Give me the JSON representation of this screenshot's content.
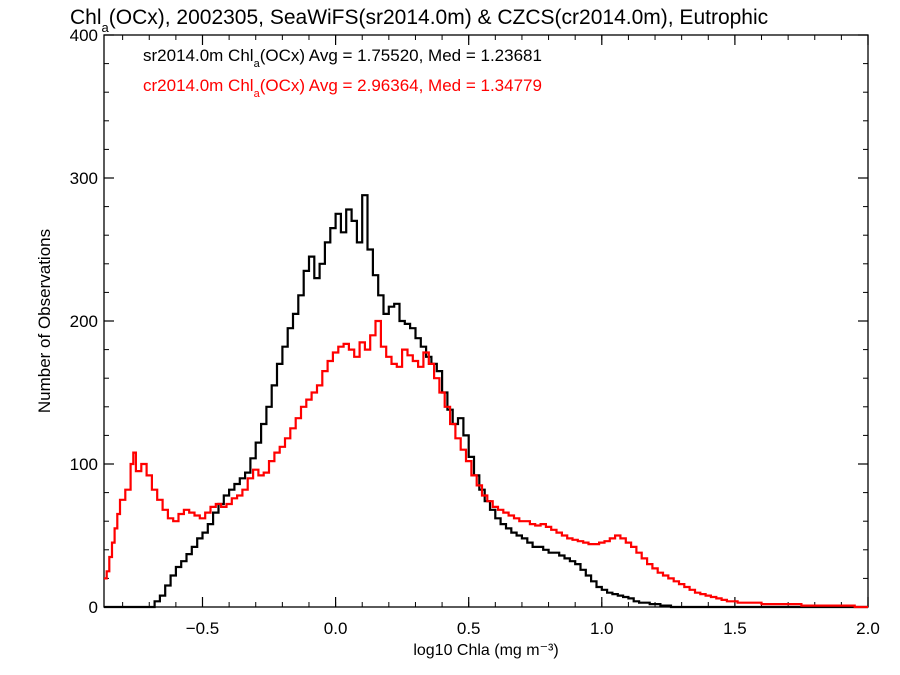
{
  "chart_data": {
    "type": "histogram",
    "title": {
      "text": "Chl(OCx), 2002305, SeaWiFS(sr2014.0m) & CZCS(cr2014.0m), Eutrophic",
      "parts": [
        {
          "text": "Chl",
          "sub": false
        },
        {
          "text": "a",
          "sub": true
        },
        {
          "text": "(OCx), 2002305, SeaWiFS(sr2014.0m) & CZCS(cr2014.0m), Eutrophic",
          "sub": false
        }
      ]
    },
    "xlabel": "log10 Chla (mg m⁻³)",
    "ylabel": "Number of Observations",
    "xlim": [
      -0.87,
      2.0
    ],
    "ylim": [
      0,
      400
    ],
    "xticks": [
      -0.5,
      0.0,
      0.5,
      1.0,
      1.5,
      2.0
    ],
    "xtick_labels": [
      "−0.5",
      "0.0",
      "0.5",
      "1.0",
      "1.5",
      "2.0"
    ],
    "xminor": 0.1,
    "yticks": [
      0,
      100,
      200,
      300,
      400
    ],
    "ytick_labels": [
      "0",
      "100",
      "200",
      "300",
      "400"
    ],
    "yminor": 20,
    "grid": false,
    "series": [
      {
        "name": "sr2014.0m",
        "color": "#000000",
        "stats_parts": [
          {
            "text": "sr2014.0m Chl",
            "sub": false
          },
          {
            "text": "a",
            "sub": true
          },
          {
            "text": "(OCx) Avg = 1.75520, Med = 1.23681",
            "sub": false
          }
        ],
        "points": [
          [
            -0.87,
            0
          ],
          [
            -0.7,
            0
          ],
          [
            -0.68,
            4
          ],
          [
            -0.66,
            8
          ],
          [
            -0.64,
            15
          ],
          [
            -0.62,
            22
          ],
          [
            -0.6,
            28
          ],
          [
            -0.58,
            32
          ],
          [
            -0.56,
            37
          ],
          [
            -0.54,
            42
          ],
          [
            -0.52,
            48
          ],
          [
            -0.5,
            52
          ],
          [
            -0.48,
            58
          ],
          [
            -0.46,
            66
          ],
          [
            -0.44,
            72
          ],
          [
            -0.42,
            78
          ],
          [
            -0.4,
            82
          ],
          [
            -0.38,
            86
          ],
          [
            -0.36,
            90
          ],
          [
            -0.34,
            94
          ],
          [
            -0.32,
            104
          ],
          [
            -0.3,
            115
          ],
          [
            -0.28,
            128
          ],
          [
            -0.26,
            140
          ],
          [
            -0.24,
            155
          ],
          [
            -0.22,
            170
          ],
          [
            -0.2,
            182
          ],
          [
            -0.18,
            195
          ],
          [
            -0.16,
            205
          ],
          [
            -0.14,
            218
          ],
          [
            -0.12,
            235
          ],
          [
            -0.1,
            245
          ],
          [
            -0.08,
            230
          ],
          [
            -0.06,
            240
          ],
          [
            -0.04,
            255
          ],
          [
            -0.02,
            265
          ],
          [
            0.0,
            275
          ],
          [
            0.02,
            262
          ],
          [
            0.04,
            278
          ],
          [
            0.06,
            270
          ],
          [
            0.08,
            255
          ],
          [
            0.1,
            288
          ],
          [
            0.12,
            250
          ],
          [
            0.14,
            232
          ],
          [
            0.16,
            218
          ],
          [
            0.18,
            205
          ],
          [
            0.2,
            210
          ],
          [
            0.22,
            212
          ],
          [
            0.24,
            200
          ],
          [
            0.26,
            198
          ],
          [
            0.28,
            195
          ],
          [
            0.3,
            188
          ],
          [
            0.32,
            182
          ],
          [
            0.34,
            175
          ],
          [
            0.36,
            170
          ],
          [
            0.38,
            165
          ],
          [
            0.4,
            150
          ],
          [
            0.42,
            138
          ],
          [
            0.44,
            128
          ],
          [
            0.46,
            132
          ],
          [
            0.48,
            120
          ],
          [
            0.5,
            105
          ],
          [
            0.52,
            92
          ],
          [
            0.54,
            82
          ],
          [
            0.56,
            74
          ],
          [
            0.58,
            68
          ],
          [
            0.6,
            62
          ],
          [
            0.62,
            58
          ],
          [
            0.64,
            55
          ],
          [
            0.66,
            52
          ],
          [
            0.68,
            50
          ],
          [
            0.7,
            48
          ],
          [
            0.72,
            45
          ],
          [
            0.74,
            42
          ],
          [
            0.76,
            42
          ],
          [
            0.78,
            40
          ],
          [
            0.8,
            38
          ],
          [
            0.82,
            38
          ],
          [
            0.84,
            36
          ],
          [
            0.86,
            34
          ],
          [
            0.88,
            32
          ],
          [
            0.9,
            30
          ],
          [
            0.92,
            26
          ],
          [
            0.94,
            22
          ],
          [
            0.96,
            18
          ],
          [
            0.98,
            14
          ],
          [
            1.0,
            12
          ],
          [
            1.02,
            10
          ],
          [
            1.04,
            9
          ],
          [
            1.06,
            8
          ],
          [
            1.08,
            7
          ],
          [
            1.1,
            6
          ],
          [
            1.12,
            4
          ],
          [
            1.14,
            3
          ],
          [
            1.16,
            3
          ],
          [
            1.18,
            2
          ],
          [
            1.2,
            2
          ],
          [
            1.22,
            1
          ],
          [
            1.24,
            1
          ],
          [
            1.26,
            0
          ],
          [
            2.0,
            0
          ]
        ]
      },
      {
        "name": "cr2014.0m",
        "color": "#ff0000",
        "stats_parts": [
          {
            "text": "cr2014.0m Chl",
            "sub": false
          },
          {
            "text": "a",
            "sub": true
          },
          {
            "text": "(OCx) Avg = 2.96364, Med = 1.34779",
            "sub": false
          }
        ],
        "points": [
          [
            -0.87,
            20
          ],
          [
            -0.86,
            25
          ],
          [
            -0.85,
            35
          ],
          [
            -0.84,
            45
          ],
          [
            -0.83,
            55
          ],
          [
            -0.82,
            65
          ],
          [
            -0.81,
            75
          ],
          [
            -0.79,
            82
          ],
          [
            -0.77,
            100
          ],
          [
            -0.76,
            108
          ],
          [
            -0.75,
            95
          ],
          [
            -0.73,
            100
          ],
          [
            -0.71,
            92
          ],
          [
            -0.69,
            82
          ],
          [
            -0.67,
            75
          ],
          [
            -0.65,
            68
          ],
          [
            -0.63,
            62
          ],
          [
            -0.61,
            60
          ],
          [
            -0.59,
            65
          ],
          [
            -0.57,
            68
          ],
          [
            -0.55,
            66
          ],
          [
            -0.53,
            64
          ],
          [
            -0.51,
            62
          ],
          [
            -0.49,
            66
          ],
          [
            -0.47,
            70
          ],
          [
            -0.45,
            72
          ],
          [
            -0.43,
            70
          ],
          [
            -0.41,
            72
          ],
          [
            -0.39,
            76
          ],
          [
            -0.37,
            78
          ],
          [
            -0.35,
            82
          ],
          [
            -0.33,
            90
          ],
          [
            -0.31,
            96
          ],
          [
            -0.29,
            92
          ],
          [
            -0.27,
            94
          ],
          [
            -0.25,
            102
          ],
          [
            -0.23,
            108
          ],
          [
            -0.21,
            112
          ],
          [
            -0.19,
            118
          ],
          [
            -0.17,
            125
          ],
          [
            -0.15,
            132
          ],
          [
            -0.13,
            140
          ],
          [
            -0.11,
            145
          ],
          [
            -0.09,
            150
          ],
          [
            -0.07,
            155
          ],
          [
            -0.05,
            165
          ],
          [
            -0.03,
            172
          ],
          [
            -0.01,
            178
          ],
          [
            0.01,
            182
          ],
          [
            0.03,
            184
          ],
          [
            0.05,
            180
          ],
          [
            0.07,
            175
          ],
          [
            0.09,
            185
          ],
          [
            0.11,
            180
          ],
          [
            0.13,
            190
          ],
          [
            0.15,
            200
          ],
          [
            0.17,
            182
          ],
          [
            0.19,
            175
          ],
          [
            0.21,
            170
          ],
          [
            0.23,
            168
          ],
          [
            0.25,
            180
          ],
          [
            0.27,
            176
          ],
          [
            0.29,
            172
          ],
          [
            0.31,
            168
          ],
          [
            0.33,
            178
          ],
          [
            0.35,
            170
          ],
          [
            0.37,
            160
          ],
          [
            0.39,
            150
          ],
          [
            0.41,
            140
          ],
          [
            0.43,
            128
          ],
          [
            0.45,
            118
          ],
          [
            0.47,
            110
          ],
          [
            0.49,
            102
          ],
          [
            0.51,
            92
          ],
          [
            0.53,
            85
          ],
          [
            0.55,
            78
          ],
          [
            0.57,
            74
          ],
          [
            0.59,
            70
          ],
          [
            0.61,
            68
          ],
          [
            0.63,
            66
          ],
          [
            0.65,
            64
          ],
          [
            0.67,
            62
          ],
          [
            0.69,
            60
          ],
          [
            0.71,
            60
          ],
          [
            0.73,
            58
          ],
          [
            0.75,
            57
          ],
          [
            0.77,
            58
          ],
          [
            0.79,
            56
          ],
          [
            0.81,
            54
          ],
          [
            0.83,
            52
          ],
          [
            0.85,
            50
          ],
          [
            0.87,
            48
          ],
          [
            0.89,
            47
          ],
          [
            0.91,
            46
          ],
          [
            0.93,
            45
          ],
          [
            0.95,
            44
          ],
          [
            0.97,
            44
          ],
          [
            0.99,
            45
          ],
          [
            1.01,
            46
          ],
          [
            1.03,
            48
          ],
          [
            1.05,
            50
          ],
          [
            1.07,
            48
          ],
          [
            1.09,
            45
          ],
          [
            1.11,
            42
          ],
          [
            1.13,
            38
          ],
          [
            1.15,
            34
          ],
          [
            1.17,
            30
          ],
          [
            1.19,
            27
          ],
          [
            1.21,
            24
          ],
          [
            1.23,
            22
          ],
          [
            1.25,
            20
          ],
          [
            1.27,
            18
          ],
          [
            1.29,
            16
          ],
          [
            1.31,
            14
          ],
          [
            1.33,
            12
          ],
          [
            1.35,
            10
          ],
          [
            1.37,
            9
          ],
          [
            1.39,
            8
          ],
          [
            1.41,
            7
          ],
          [
            1.43,
            6
          ],
          [
            1.45,
            5
          ],
          [
            1.47,
            4
          ],
          [
            1.49,
            4
          ],
          [
            1.51,
            3
          ],
          [
            1.55,
            3
          ],
          [
            1.6,
            2
          ],
          [
            1.65,
            2
          ],
          [
            1.7,
            2
          ],
          [
            1.75,
            1
          ],
          [
            1.8,
            1
          ],
          [
            1.85,
            1
          ],
          [
            1.9,
            1
          ],
          [
            1.95,
            0
          ],
          [
            2.0,
            0
          ]
        ]
      }
    ]
  }
}
